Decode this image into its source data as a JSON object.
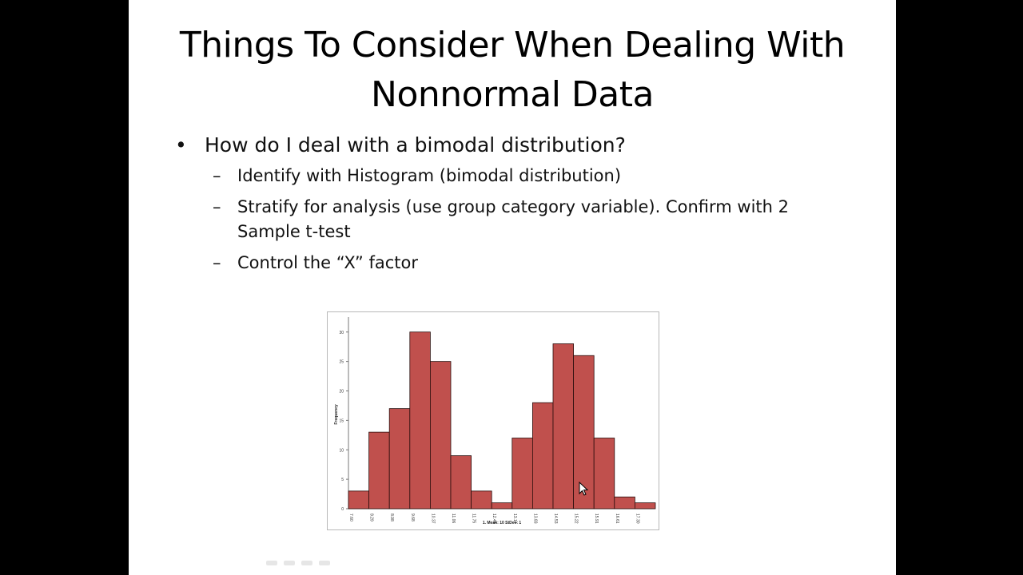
{
  "slide": {
    "title_lines": [
      "Things To Consider When Dealing With",
      "Nonnormal Data"
    ],
    "bullet": {
      "marker": "•",
      "text": "How do I deal with a bimodal distribution?"
    },
    "subbullets": [
      {
        "marker": "–",
        "text": "Identify with Histogram (bimodal distribution)"
      },
      {
        "marker": "–",
        "text": "Stratify for analysis (use group category variable). Confirm with 2 Sample t-test"
      },
      {
        "marker": "–",
        "text": "Control the “X” factor"
      }
    ]
  },
  "chart_data": {
    "type": "bar",
    "title": "",
    "xlabel": "1. Mean: 10 StDev: 1",
    "ylabel": "Frequency",
    "ylim": [
      0,
      32
    ],
    "y_ticks": [
      0,
      5,
      10,
      15,
      20,
      25,
      30
    ],
    "x_tick_labels": [
      "7.60",
      "8.29",
      "8.98",
      "9.68",
      "10.37",
      "11.06",
      "11.75",
      "12.45",
      "13.14",
      "13.83",
      "14.53",
      "15.22",
      "15.91",
      "16.61",
      "17.30"
    ],
    "values": [
      3,
      13,
      17,
      30,
      25,
      9,
      3,
      1,
      12,
      18,
      28,
      26,
      12,
      2,
      1
    ],
    "bar_color": "#c0504d",
    "grid": false
  },
  "colors": {
    "background": "#000000",
    "slide": "#ffffff",
    "bar": "#c0504d"
  },
  "icons": {
    "cursor": "mouse-pointer-icon"
  }
}
